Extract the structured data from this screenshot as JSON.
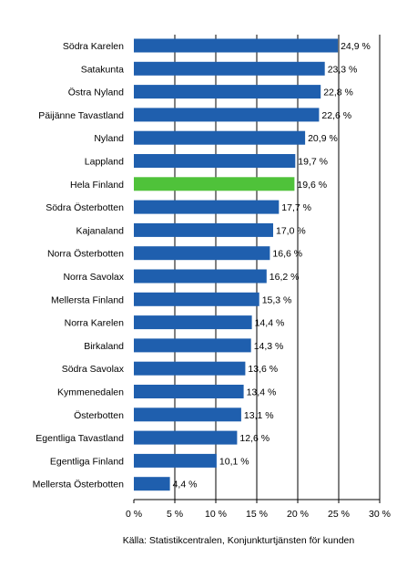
{
  "chart_data": {
    "type": "bar",
    "orientation": "horizontal",
    "categories": [
      "Södra Karelen",
      "Satakunta",
      "Östra Nyland",
      "Päijänne Tavastland",
      "Nyland",
      "Lappland",
      "Hela Finland",
      "Södra Österbotten",
      "Kajanaland",
      "Norra Österbotten",
      "Norra Savolax",
      "Mellersta Finland",
      "Norra Karelen",
      "Birkaland",
      "Södra Savolax",
      "Kymmenedalen",
      "Österbotten",
      "Egentliga Tavastland",
      "Egentliga Finland",
      "Mellersta Österbotten"
    ],
    "values": [
      24.9,
      23.3,
      22.8,
      22.6,
      20.9,
      19.7,
      19.6,
      17.7,
      17.0,
      16.6,
      16.2,
      15.3,
      14.4,
      14.3,
      13.6,
      13.4,
      13.1,
      12.6,
      10.1,
      4.4
    ],
    "value_labels": [
      "24,9 %",
      "23,3 %",
      "22,8 %",
      "22,6 %",
      "20,9 %",
      "19,7 %",
      "19,6 %",
      "17,7 %",
      "17,0 %",
      "16,6 %",
      "16,2 %",
      "15,3 %",
      "14,4 %",
      "14,3 %",
      "13,6 %",
      "13,4 %",
      "13,1 %",
      "12,6 %",
      "10,1 %",
      "4,4 %"
    ],
    "xlim": [
      0,
      30
    ],
    "x_ticks": [
      0,
      5,
      10,
      15,
      20,
      25,
      30
    ],
    "x_tick_labels": [
      "0 %",
      "5 %",
      "10 %",
      "15 %",
      "20 %",
      "25 %",
      "30 %"
    ],
    "grid": "vertical",
    "highlight_category": "Hela Finland",
    "bar_color": "#1f5fae",
    "highlight_color": "#4fc23a",
    "title": "",
    "xlabel": "",
    "ylabel": ""
  },
  "source": "Källa: Statistikcentralen, Konjunkturtjänsten för kunden"
}
